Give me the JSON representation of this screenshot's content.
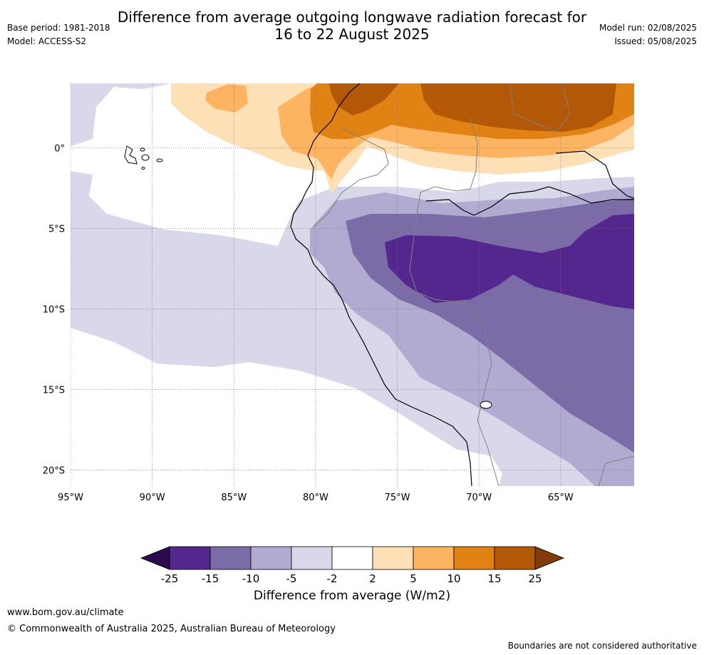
{
  "header": {
    "title_line1": "Difference from average outgoing longwave radiation forecast for",
    "title_line2": "16 to 22 August 2025",
    "base_period": "Base period: 1981-2018",
    "model": "Model: ACCESS-S2",
    "model_run": "Model run: 02/08/2025",
    "issued": "Issued: 05/08/2025"
  },
  "map": {
    "lon_range": [
      -95,
      -60.5
    ],
    "lat_range": [
      -21,
      4
    ],
    "lon_ticks": [
      {
        "value": -95,
        "label": "95°W"
      },
      {
        "value": -90,
        "label": "90°W"
      },
      {
        "value": -85,
        "label": "85°W"
      },
      {
        "value": -80,
        "label": "80°W"
      },
      {
        "value": -75,
        "label": "75°W"
      },
      {
        "value": -70,
        "label": "70°W"
      },
      {
        "value": -65,
        "label": "65°W"
      }
    ],
    "lat_ticks": [
      {
        "value": 0,
        "label": "0°"
      },
      {
        "value": -5,
        "label": "5°S"
      },
      {
        "value": -10,
        "label": "10°S"
      },
      {
        "value": -15,
        "label": "15°S"
      },
      {
        "value": -20,
        "label": "20°S"
      }
    ],
    "colors": {
      "lt_neg25": "#2d0a4e",
      "neg25_neg15": "#54278f",
      "neg15_neg10": "#7b6ca8",
      "neg10_neg5": "#b1aad1",
      "neg5_neg2": "#d8d8ea",
      "neg2_2": "#ffffff",
      "2_5": "#fde0b6",
      "5_10": "#fdb462",
      "10_15": "#e08214",
      "15_25": "#b35806",
      "gt_25": "#7f3b08"
    }
  },
  "colorbar": {
    "labels": [
      "-25",
      "-15",
      "-10",
      "-5",
      "-2",
      "2",
      "5",
      "10",
      "15",
      "25"
    ],
    "colors": [
      "#54278f",
      "#7b6ca8",
      "#b1aad1",
      "#d8d8ea",
      "#ffffff",
      "#fde0b6",
      "#fdb462",
      "#e08214",
      "#b35806"
    ],
    "under_color": "#2d0a4e",
    "over_color": "#7f3b08",
    "label": "Difference from average (W/m2)"
  },
  "footer": {
    "site": "www.bom.gov.au/climate",
    "copyright": "© Commonwealth of Australia 2025, Australian Bureau of Meteorology",
    "disclaimer": "Boundaries are not considered authoritative"
  }
}
